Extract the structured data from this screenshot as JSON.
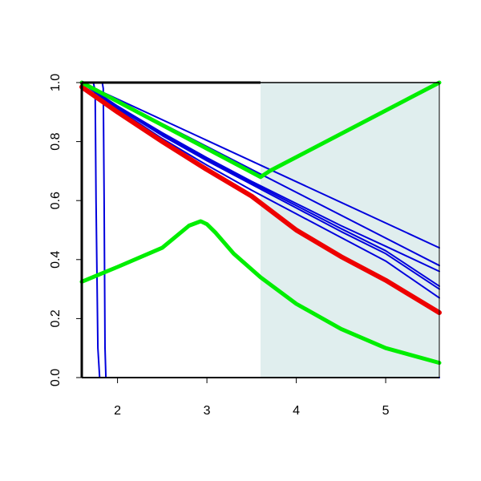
{
  "chart_data": {
    "type": "line",
    "title": "",
    "xlabel": "",
    "ylabel": "",
    "xlim": [
      1.6,
      5.6
    ],
    "ylim": [
      0.0,
      1.0
    ],
    "x_ticks": [
      {
        "value": 2,
        "label": "2"
      },
      {
        "value": 3,
        "label": "3"
      },
      {
        "value": 4,
        "label": "4"
      },
      {
        "value": 5,
        "label": "5"
      }
    ],
    "y_ticks": [
      {
        "value": 0.0,
        "label": "0.0"
      },
      {
        "value": 0.2,
        "label": "0.2"
      },
      {
        "value": 0.4,
        "label": "0.4"
      },
      {
        "value": 0.6,
        "label": "0.6"
      },
      {
        "value": 0.8,
        "label": "0.8"
      },
      {
        "value": 1.0,
        "label": "1.0"
      }
    ],
    "grid": false,
    "legend": "none",
    "shaded_region": {
      "x_start": 3.6,
      "x_end": 5.6,
      "color": "#e0eeee"
    },
    "series": [
      {
        "color": "#0000dd",
        "width": 2,
        "x": [
          1.6,
          5.6
        ],
        "y": [
          1.0,
          0.44
        ]
      },
      {
        "color": "#0000dd",
        "width": 2,
        "x": [
          1.6,
          5.6
        ],
        "y": [
          1.0,
          0.38
        ]
      },
      {
        "color": "#0000dd",
        "width": 2,
        "x": [
          1.6,
          2.0,
          2.5,
          3.0,
          3.5,
          4.0,
          4.5,
          5.0,
          5.6
        ],
        "y": [
          1.0,
          0.92,
          0.83,
          0.745,
          0.665,
          0.59,
          0.515,
          0.445,
          0.36
        ]
      },
      {
        "color": "#0000dd",
        "width": 2,
        "x": [
          1.6,
          2.0,
          2.5,
          3.0,
          3.5,
          4.0,
          4.5,
          5.0,
          5.6
        ],
        "y": [
          1.0,
          0.92,
          0.825,
          0.74,
          0.66,
          0.583,
          0.505,
          0.43,
          0.31
        ]
      },
      {
        "color": "#0000dd",
        "width": 2,
        "x": [
          1.6,
          2.0,
          2.5,
          3.0,
          3.5,
          4.0,
          4.5,
          5.0,
          5.6
        ],
        "y": [
          1.0,
          0.915,
          0.82,
          0.735,
          0.655,
          0.575,
          0.495,
          0.42,
          0.3
        ]
      },
      {
        "color": "#0000dd",
        "width": 2,
        "x": [
          1.6,
          2.0,
          2.5,
          3.0,
          3.5,
          4.0,
          4.5,
          5.0,
          5.6
        ],
        "y": [
          1.0,
          0.91,
          0.81,
          0.72,
          0.635,
          0.555,
          0.475,
          0.395,
          0.27
        ]
      },
      {
        "color": "#0000dd",
        "width": 2,
        "x": [
          1.6,
          1.73,
          1.75,
          1.76,
          1.78,
          1.8,
          5.6
        ],
        "y": [
          1.0,
          1.0,
          0.97,
          0.6,
          0.1,
          0.0,
          0.0
        ]
      },
      {
        "color": "#0000dd",
        "width": 2,
        "x": [
          1.6,
          1.83,
          1.84,
          1.85,
          1.86,
          1.87,
          5.6
        ],
        "y": [
          1.0,
          1.0,
          0.98,
          0.6,
          0.1,
          0.0,
          0.0
        ]
      },
      {
        "color": "#ee0000",
        "width": 6,
        "x": [
          1.6,
          2.0,
          2.5,
          3.0,
          3.5,
          4.0,
          4.5,
          5.0,
          5.6
        ],
        "y": [
          0.985,
          0.9,
          0.8,
          0.705,
          0.615,
          0.5,
          0.41,
          0.33,
          0.22
        ]
      },
      {
        "color": "#00ee00",
        "width": 5,
        "x": [
          1.6,
          3.6,
          3.7,
          5.6
        ],
        "y": [
          1.0,
          0.68,
          0.7,
          1.0
        ]
      },
      {
        "color": "#00ee00",
        "width": 5,
        "x": [
          1.6,
          2.0,
          2.5,
          2.8,
          2.93,
          3.0,
          3.1,
          3.3,
          3.6,
          4.0,
          4.5,
          5.0,
          5.6
        ],
        "y": [
          0.325,
          0.375,
          0.44,
          0.515,
          0.53,
          0.52,
          0.49,
          0.42,
          0.34,
          0.25,
          0.165,
          0.1,
          0.05
        ]
      }
    ]
  }
}
